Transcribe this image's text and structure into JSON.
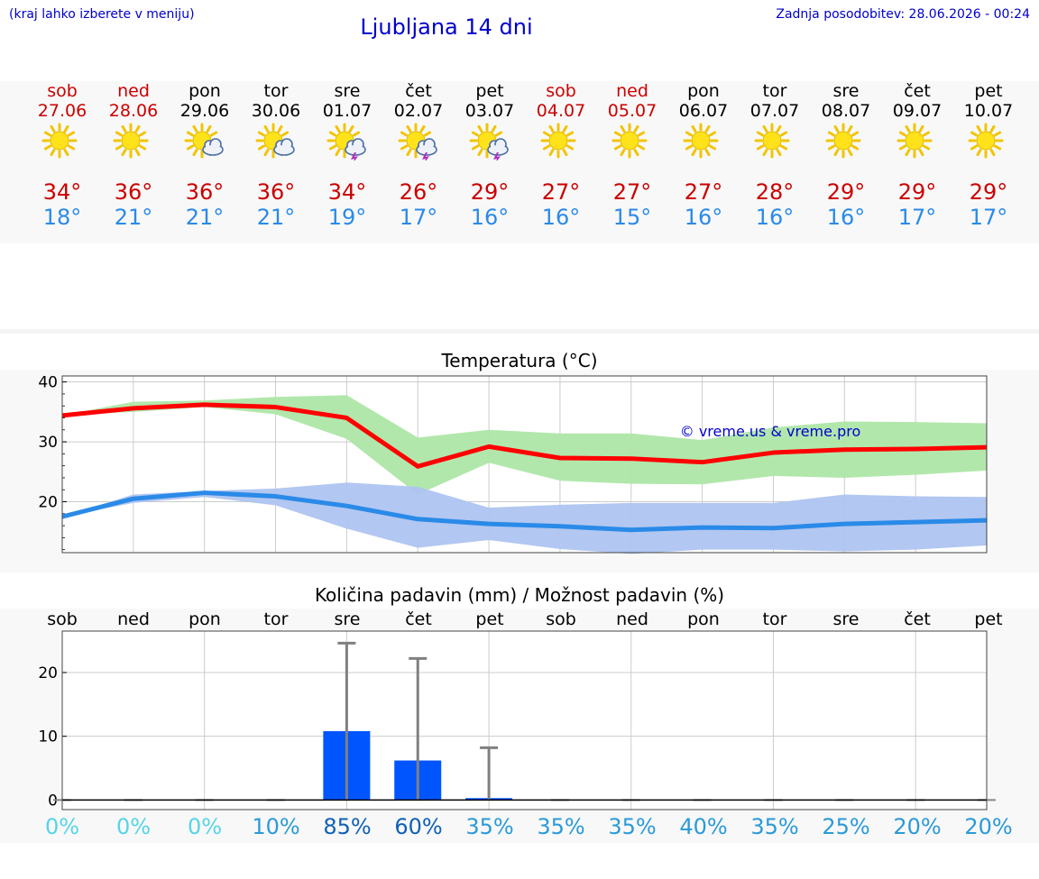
{
  "header": {
    "note": "(kraj lahko izberete v meniju)",
    "title": "Ljubljana 14 dni",
    "updated": "Zadnja posodobitev: 28.06.2026 - 00:24"
  },
  "days": [
    {
      "name": "sob",
      "date": "27.06",
      "weekend": true,
      "icon": "sun-icon",
      "max": "34°",
      "min": "18°",
      "pct": "0%"
    },
    {
      "name": "ned",
      "date": "28.06",
      "weekend": true,
      "icon": "sun-icon",
      "max": "36°",
      "min": "21°",
      "pct": "0%"
    },
    {
      "name": "pon",
      "date": "29.06",
      "weekend": false,
      "icon": "sun-cloud-icon",
      "max": "36°",
      "min": "21°",
      "pct": "0%"
    },
    {
      "name": "tor",
      "date": "30.06",
      "weekend": false,
      "icon": "sun-cloud-icon",
      "max": "36°",
      "min": "21°",
      "pct": "10%"
    },
    {
      "name": "sre",
      "date": "01.07",
      "weekend": false,
      "icon": "sun-storm-icon",
      "max": "34°",
      "min": "19°",
      "pct": "85%"
    },
    {
      "name": "čet",
      "date": "02.07",
      "weekend": false,
      "icon": "sun-storm-icon",
      "max": "26°",
      "min": "17°",
      "pct": "60%"
    },
    {
      "name": "pet",
      "date": "03.07",
      "weekend": false,
      "icon": "sun-storm-icon",
      "max": "29°",
      "min": "16°",
      "pct": "35%"
    },
    {
      "name": "sob",
      "date": "04.07",
      "weekend": true,
      "icon": "sun-icon",
      "max": "27°",
      "min": "16°",
      "pct": "35%"
    },
    {
      "name": "ned",
      "date": "05.07",
      "weekend": true,
      "icon": "sun-icon",
      "max": "27°",
      "min": "15°",
      "pct": "35%"
    },
    {
      "name": "pon",
      "date": "06.07",
      "weekend": false,
      "icon": "sun-icon",
      "max": "27°",
      "min": "16°",
      "pct": "40%"
    },
    {
      "name": "tor",
      "date": "07.07",
      "weekend": false,
      "icon": "sun-icon",
      "max": "28°",
      "min": "16°",
      "pct": "35%"
    },
    {
      "name": "sre",
      "date": "08.07",
      "weekend": false,
      "icon": "sun-icon",
      "max": "29°",
      "min": "16°",
      "pct": "25%"
    },
    {
      "name": "čet",
      "date": "09.07",
      "weekend": false,
      "icon": "sun-icon",
      "max": "29°",
      "min": "17°",
      "pct": "20%"
    },
    {
      "name": "pet",
      "date": "10.07",
      "weekend": false,
      "icon": "sun-icon",
      "max": "29°",
      "min": "17°",
      "pct": "20%"
    }
  ],
  "colors": {
    "weekend": "#cc0000",
    "max_line": "#ff0000",
    "min_line": "#2a8ae8",
    "max_band": "#aee6a8",
    "min_band": "#aec4f0",
    "bar": "#0055ff",
    "whisker": "#808080",
    "pct_low": "#55d4e8",
    "pct_mid": "#2a9ad8",
    "pct_high": "#1060b8"
  },
  "chart_data": [
    {
      "type": "line",
      "title": "Temperatura (°C)",
      "watermark": "© vreme.us & vreme.pro",
      "ylim": [
        11.5,
        41
      ],
      "yticks": [
        20,
        30,
        40
      ],
      "grid": true,
      "series": [
        {
          "values": [
            34.4,
            35.6,
            36.2,
            35.8,
            34.0,
            25.9,
            29.2,
            27.3,
            27.2,
            26.6,
            28.2,
            28.7,
            28.8,
            29.1
          ],
          "upper": [
            34.4,
            36.7,
            36.9,
            37.5,
            37.8,
            30.7,
            32.0,
            31.4,
            31.4,
            30.3,
            32.4,
            33.4,
            33.3,
            33.1
          ],
          "lower": [
            34.4,
            35.0,
            35.8,
            34.6,
            30.5,
            21.2,
            26.5,
            23.5,
            23.0,
            22.9,
            24.3,
            24.0,
            24.5,
            25.2
          ]
        },
        {
          "values": [
            17.5,
            20.5,
            21.5,
            20.9,
            19.3,
            17.1,
            16.3,
            15.9,
            15.3,
            15.7,
            15.6,
            16.3,
            16.6,
            16.9
          ],
          "upper": [
            17.5,
            21.2,
            21.8,
            22.2,
            23.2,
            22.5,
            19.0,
            19.5,
            19.8,
            19.8,
            19.8,
            21.2,
            20.9,
            20.8
          ],
          "lower": [
            17.5,
            19.8,
            20.8,
            19.4,
            15.5,
            12.3,
            13.6,
            12.1,
            11.3,
            12.0,
            12.0,
            11.7,
            12.0,
            12.7
          ]
        }
      ]
    },
    {
      "type": "bar",
      "title": "Količina padavin (mm) / Možnost padavin (%)",
      "categories": [
        "sob",
        "ned",
        "pon",
        "tor",
        "sre",
        "čet",
        "pet",
        "sob",
        "ned",
        "pon",
        "tor",
        "sre",
        "čet",
        "pet"
      ],
      "ylim": [
        -1.5,
        26.5
      ],
      "yticks": [
        0,
        10,
        20
      ],
      "values": [
        0,
        0,
        0,
        0,
        10.8,
        6.2,
        0.3,
        0,
        0,
        0,
        0,
        0,
        0,
        0
      ],
      "max": [
        0,
        0,
        0,
        0,
        24.6,
        22.2,
        8.2,
        0,
        0,
        0,
        0,
        0,
        0,
        0
      ],
      "chance": [
        "0%",
        "0%",
        "0%",
        "10%",
        "85%",
        "60%",
        "35%",
        "35%",
        "35%",
        "40%",
        "35%",
        "25%",
        "20%",
        "20%"
      ]
    }
  ]
}
